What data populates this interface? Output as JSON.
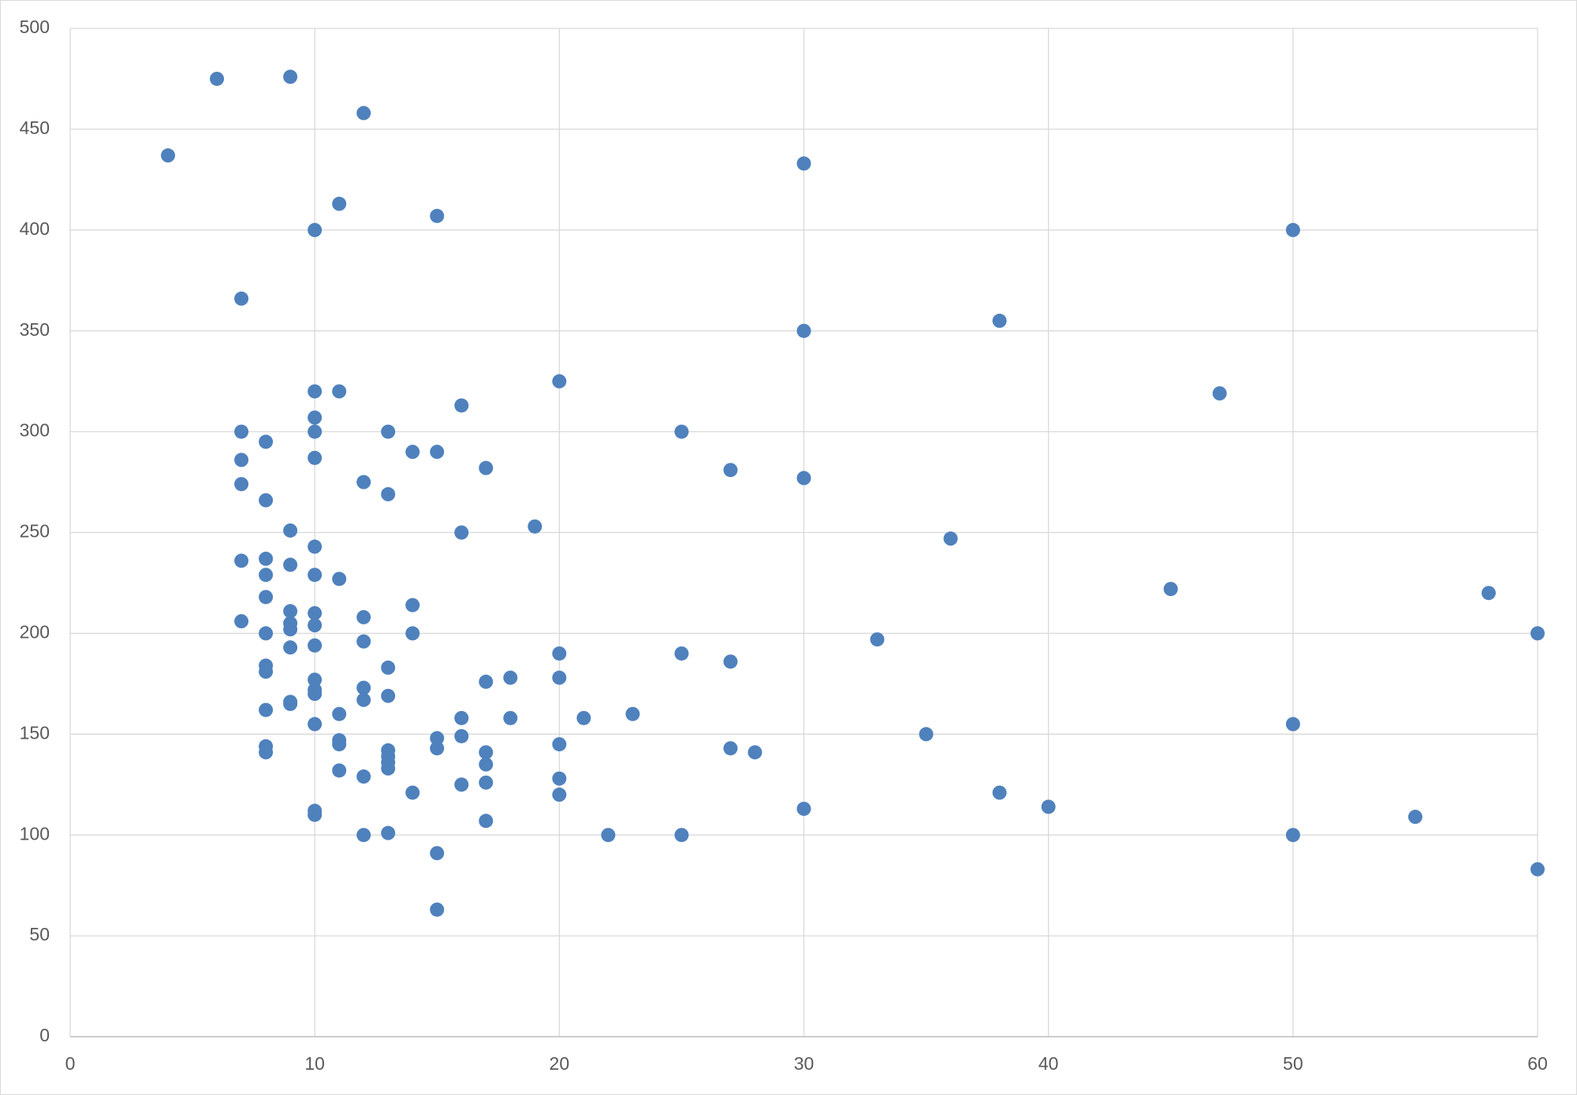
{
  "chart_data": {
    "type": "scatter",
    "x": [
      4,
      6,
      9,
      12,
      11,
      15,
      10,
      7,
      30,
      50,
      38,
      30,
      47,
      20,
      10,
      11,
      16,
      10,
      7,
      10,
      13,
      25,
      8,
      14,
      15,
      10,
      7,
      17,
      27,
      12,
      7,
      30,
      13,
      8,
      19,
      9,
      16,
      36,
      10,
      8,
      7,
      9,
      10,
      8,
      11,
      45,
      58,
      8,
      14,
      9,
      10,
      12,
      7,
      9,
      10,
      9,
      8,
      14,
      60,
      33,
      12,
      10,
      9,
      20,
      25,
      27,
      8,
      13,
      8,
      20,
      18,
      10,
      17,
      12,
      10,
      10,
      13,
      9,
      9,
      12,
      8,
      23,
      11,
      16,
      18,
      21,
      10,
      50,
      35,
      16,
      15,
      11,
      11,
      20,
      8,
      15,
      27,
      13,
      17,
      28,
      8,
      13,
      13,
      17,
      13,
      11,
      12,
      20,
      17,
      16,
      14,
      38,
      20,
      30,
      40,
      10,
      10,
      55,
      17,
      13,
      12,
      22,
      25,
      50,
      15,
      60,
      15
    ],
    "values": [
      437,
      475,
      476,
      458,
      413,
      407,
      400,
      366,
      433,
      400,
      355,
      350,
      319,
      325,
      320,
      320,
      313,
      307,
      300,
      300,
      300,
      300,
      295,
      290,
      290,
      287,
      286,
      282,
      281,
      275,
      274,
      277,
      269,
      266,
      253,
      251,
      250,
      247,
      243,
      237,
      236,
      234,
      229,
      229,
      227,
      222,
      220,
      218,
      214,
      211,
      210,
      208,
      206,
      205,
      204,
      202,
      200,
      200,
      200,
      197,
      196,
      194,
      193,
      190,
      190,
      186,
      184,
      183,
      181,
      178,
      178,
      177,
      176,
      173,
      172,
      170,
      169,
      166,
      165,
      167,
      162,
      160,
      160,
      158,
      158,
      158,
      155,
      155,
      150,
      149,
      148,
      147,
      145,
      145,
      144,
      143,
      143,
      142,
      141,
      141,
      141,
      139,
      136,
      135,
      133,
      132,
      129,
      128,
      126,
      125,
      121,
      121,
      120,
      113,
      114,
      112,
      110,
      109,
      107,
      101,
      100,
      100,
      100,
      100,
      91,
      83,
      63
    ],
    "color": "#4f81bd",
    "xlim": [
      0,
      60
    ],
    "xticks": [
      0,
      10,
      20,
      30,
      40,
      50,
      60
    ],
    "ylim": [
      0,
      500
    ],
    "yticks": [
      0,
      50,
      100,
      150,
      200,
      250,
      300,
      350,
      400,
      450,
      500
    ],
    "grid": true
  }
}
